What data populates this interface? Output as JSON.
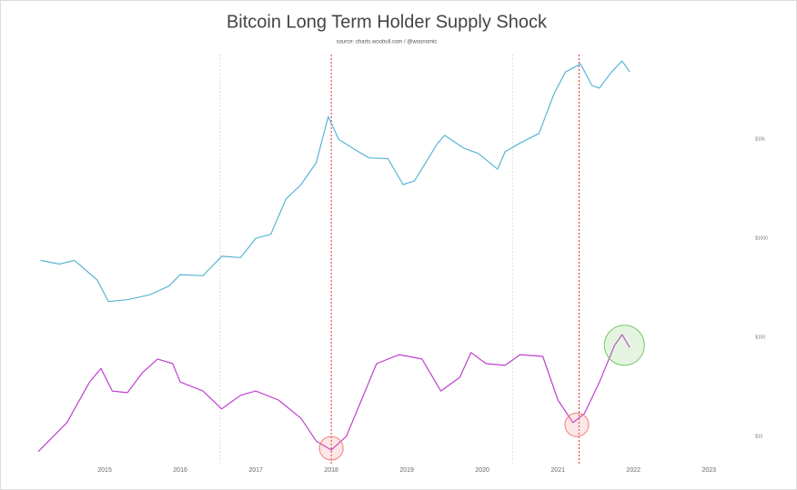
{
  "chart_data": {
    "type": "line",
    "title": "Bitcoin Long Term Holder Supply Shock",
    "subtitle": "source: charts.woobull.com / @woonomic",
    "xlim": [
      2014.12,
      2023.25
    ],
    "xticks": [
      2015,
      2016,
      2017,
      2018,
      2019,
      2020,
      2021,
      2022,
      2023
    ],
    "ylim": [
      5.3,
      110000
    ],
    "ylog": true,
    "yticks": [
      {
        "value": 10,
        "label": "$10"
      },
      {
        "value": 100,
        "label": "$100"
      },
      {
        "value": 1000,
        "label": "$1000"
      },
      {
        "value": 10000,
        "label": "$10k"
      }
    ],
    "y2lim": [
      0,
      100
    ],
    "series": [
      {
        "color": "#5ab4d6",
        "x": [
          2014.15,
          2014.4,
          2014.6,
          2014.9,
          2015.05,
          2015.3,
          2015.6,
          2015.85,
          2016.0,
          2016.3,
          2016.55,
          2016.8,
          2017.0,
          2017.2,
          2017.4,
          2017.6,
          2017.8,
          2017.96,
          2018.1,
          2018.3,
          2018.5,
          2018.75,
          2018.95,
          2019.1,
          2019.4,
          2019.5,
          2019.75,
          2019.95,
          2020.2,
          2020.3,
          2020.5,
          2020.75,
          2020.95,
          2021.1,
          2021.3,
          2021.45,
          2021.55,
          2021.7,
          2021.85,
          2021.95
        ],
        "values": [
          600,
          550,
          600,
          380,
          230,
          240,
          270,
          330,
          430,
          420,
          660,
          640,
          1000,
          1100,
          2500,
          3500,
          5800,
          17000,
          10000,
          8000,
          6500,
          6400,
          3500,
          3800,
          9000,
          11000,
          8200,
          7200,
          5000,
          7500,
          9200,
          11500,
          29000,
          48000,
          58000,
          35000,
          33000,
          47000,
          62000,
          48000
        ]
      },
      {
        "color": "#c040d0",
        "axis": "y2",
        "x": [
          2014.12,
          2014.5,
          2014.8,
          2014.95,
          2015.1,
          2015.3,
          2015.5,
          2015.7,
          2015.9,
          2016.0,
          2016.3,
          2016.55,
          2016.8,
          2017.0,
          2017.3,
          2017.6,
          2017.8,
          2018.0,
          2018.2,
          2018.4,
          2018.6,
          2018.9,
          2019.2,
          2019.45,
          2019.7,
          2019.85,
          2020.05,
          2020.3,
          2020.5,
          2020.8,
          2021.0,
          2021.2,
          2021.35,
          2021.55,
          2021.75,
          2021.85,
          2021.95
        ],
        "values": [
          2.8,
          9.6,
          19.1,
          22.3,
          17.0,
          16.6,
          21.3,
          24.5,
          23.4,
          19.1,
          17.0,
          12.8,
          16.0,
          17.0,
          14.9,
          10.6,
          5.3,
          3.2,
          6.4,
          14.9,
          23.4,
          25.5,
          24.5,
          17.0,
          20.2,
          26.0,
          23.4,
          23.0,
          25.5,
          25.1,
          14.9,
          9.6,
          11.7,
          19.1,
          27.7,
          30.2,
          27.2
        ]
      }
    ],
    "vlines": [
      {
        "x": 2016.53,
        "color": "#dddddd"
      },
      {
        "x": 2018.0,
        "color": "#e03030"
      },
      {
        "x": 2020.4,
        "color": "#dddddd"
      },
      {
        "x": 2021.28,
        "color": "#e03030"
      }
    ],
    "highlights": [
      {
        "x": 2018.0,
        "y2": 3.6,
        "color": "#f08080"
      },
      {
        "x": 2021.25,
        "y2": 9.1,
        "color": "#f08080"
      },
      {
        "x": 2021.88,
        "y2": 27.7,
        "color": "#7cc86a"
      }
    ]
  }
}
